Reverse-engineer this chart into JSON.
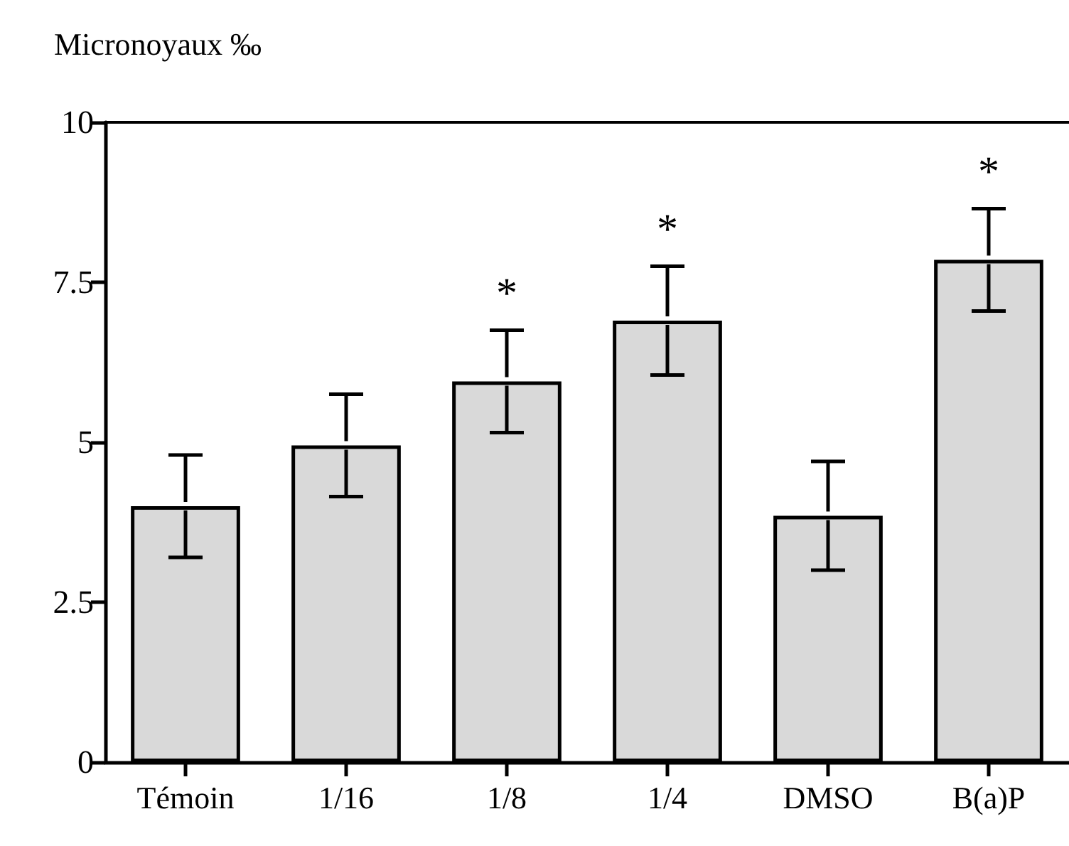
{
  "chart_data": {
    "type": "bar",
    "ylabel": "Micronoyaux ‰",
    "categories": [
      "Témoin",
      "1/16",
      "1/8",
      "1/4",
      "DMSO",
      "B(a)P"
    ],
    "values": [
      4.0,
      4.95,
      5.95,
      6.9,
      3.85,
      7.85
    ],
    "errors": [
      0.8,
      0.8,
      0.8,
      0.85,
      0.85,
      0.8
    ],
    "color": "#d9d9d9",
    "ylim": [
      0,
      10
    ],
    "yticks": [
      0,
      2.5,
      5,
      7.5,
      10
    ],
    "grid": false,
    "annotations": [
      "*",
      "*",
      "*"
    ]
  }
}
